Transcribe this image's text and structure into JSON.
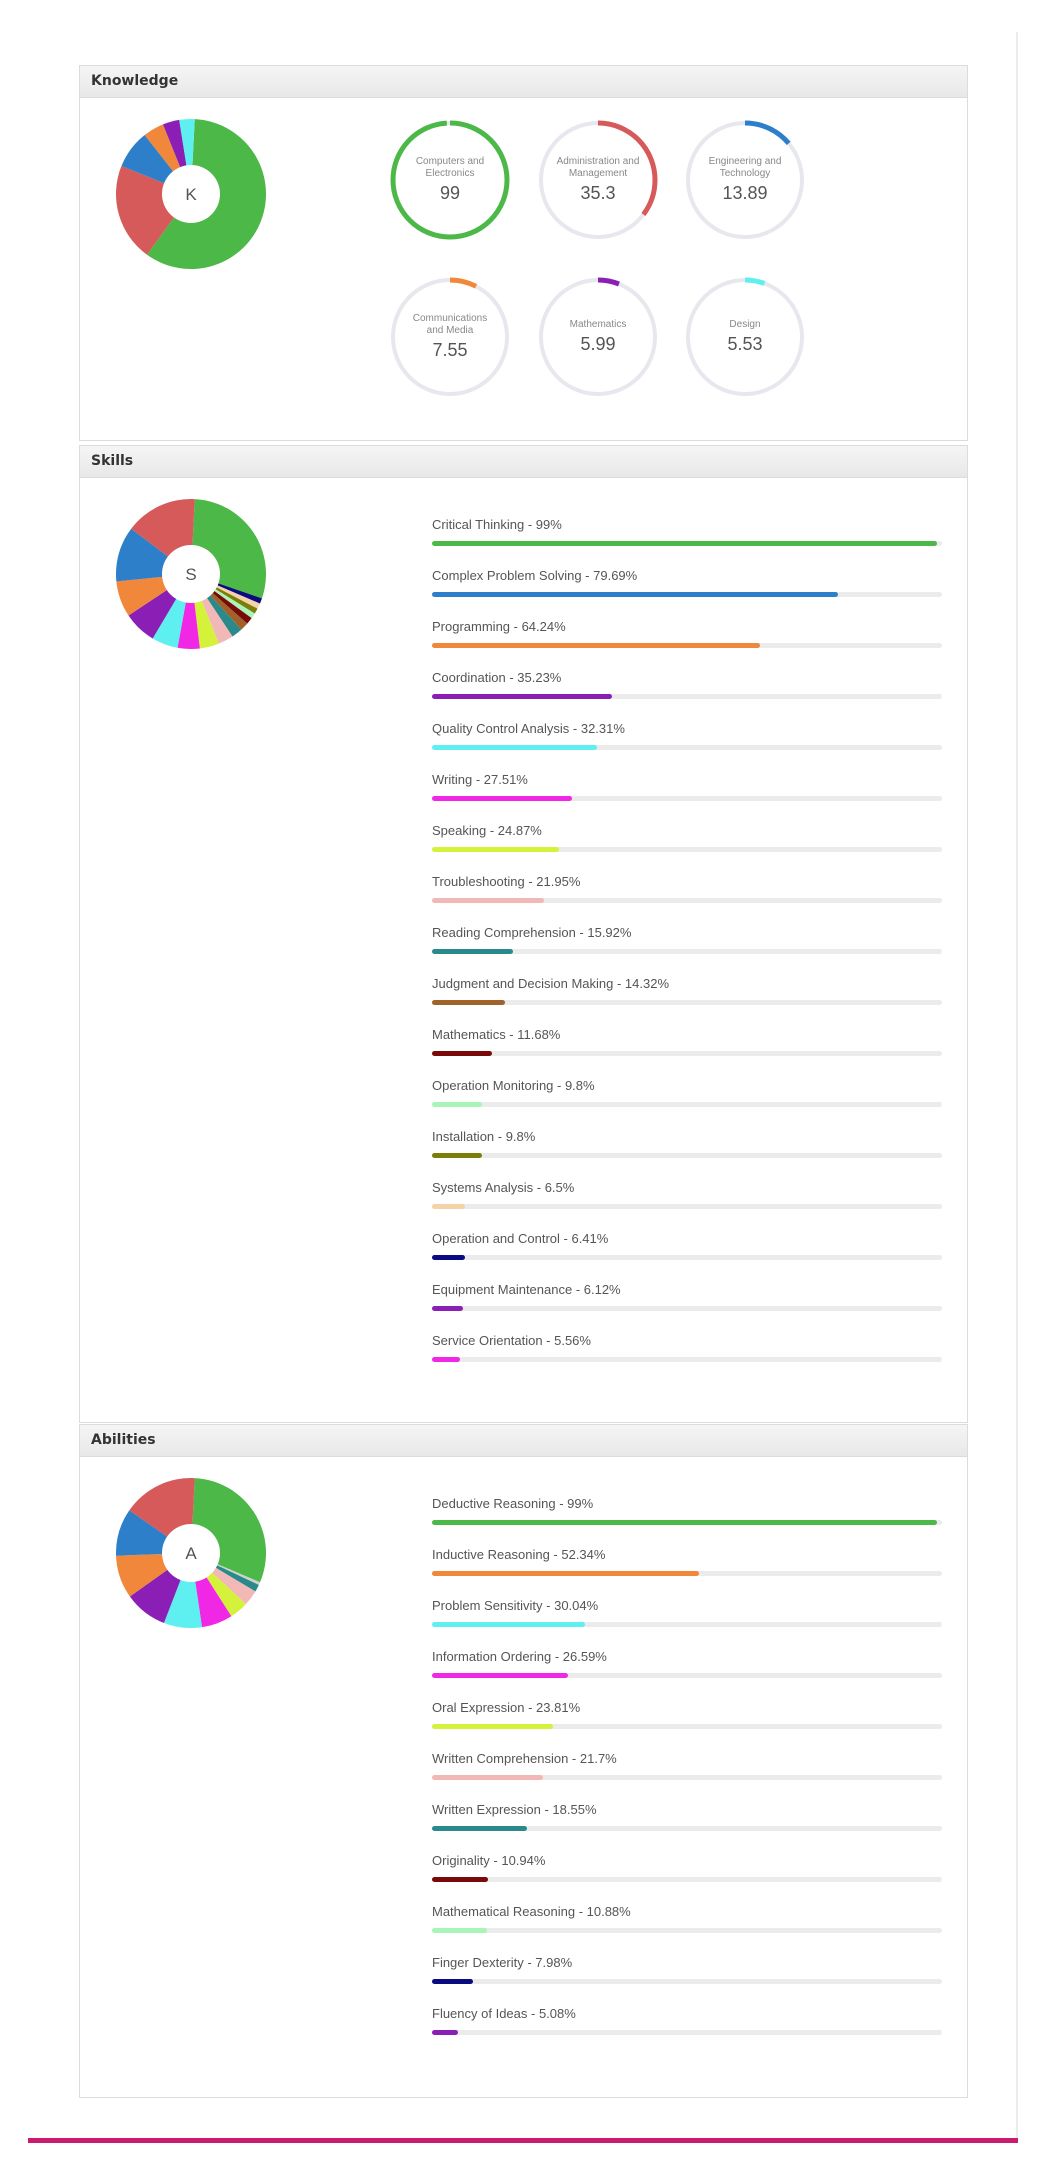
{
  "knowledge": {
    "title": "Knowledge",
    "pie_letter": "K",
    "pie_slices": [
      {
        "value": 99,
        "color": "#4cb848"
      },
      {
        "value": 35.3,
        "color": "#d65a5a"
      },
      {
        "value": 13.89,
        "color": "#2e7fc9"
      },
      {
        "value": 7.55,
        "color": "#f0873a"
      },
      {
        "value": 5.99,
        "color": "#8b1fb5"
      },
      {
        "value": 5.53,
        "color": "#5ef0f0"
      }
    ],
    "items": [
      {
        "label": "Computers and Electronics",
        "value": "99",
        "percent": 99,
        "color": "#4cb848"
      },
      {
        "label": "Administration and Management",
        "value": "35.3",
        "percent": 35.3,
        "color": "#d65a5a"
      },
      {
        "label": "Engineering and Technology",
        "value": "13.89",
        "percent": 13.89,
        "color": "#2e7fc9"
      },
      {
        "label": "Communications and Media",
        "value": "7.55",
        "percent": 7.55,
        "color": "#f0873a"
      },
      {
        "label": "Mathematics",
        "value": "5.99",
        "percent": 5.99,
        "color": "#8b1fb5"
      },
      {
        "label": "Design",
        "value": "5.53",
        "percent": 5.53,
        "color": "#5ef0f0"
      }
    ]
  },
  "skills": {
    "title": "Skills",
    "pie_letter": "S",
    "items": [
      {
        "label": "Critical Thinking - 99%",
        "percent": 99,
        "color": "#4cb848"
      },
      {
        "label": "Complex Problem Solving - 79.69%",
        "percent": 79.69,
        "color": "#2e7fc9"
      },
      {
        "label": "Programming - 64.24%",
        "percent": 64.24,
        "color": "#f0873a"
      },
      {
        "label": "Coordination - 35.23%",
        "percent": 35.23,
        "color": "#8b1fb5"
      },
      {
        "label": "Quality Control Analysis - 32.31%",
        "percent": 32.31,
        "color": "#5ef0f0"
      },
      {
        "label": "Writing - 27.51%",
        "percent": 27.51,
        "color": "#f028e6"
      },
      {
        "label": "Speaking - 24.87%",
        "percent": 24.87,
        "color": "#d4f23a"
      },
      {
        "label": "Troubleshooting - 21.95%",
        "percent": 21.95,
        "color": "#f2b8b8"
      },
      {
        "label": "Reading Comprehension - 15.92%",
        "percent": 15.92,
        "color": "#2a8a8a"
      },
      {
        "label": "Judgment and Decision Making - 14.32%",
        "percent": 14.32,
        "color": "#a0622a"
      },
      {
        "label": "Mathematics - 11.68%",
        "percent": 11.68,
        "color": "#7a0a0a"
      },
      {
        "label": "Operation Monitoring - 9.8%",
        "percent": 9.8,
        "color": "#a8f5b8"
      },
      {
        "label": "Installation - 9.8%",
        "percent": 9.8,
        "color": "#7d7d0a"
      },
      {
        "label": "Systems Analysis - 6.5%",
        "percent": 6.5,
        "color": "#f5d2a8"
      },
      {
        "label": "Operation and Control - 6.41%",
        "percent": 6.41,
        "color": "#0a0a82"
      },
      {
        "label": "Equipment Maintenance - 6.12%",
        "percent": 6.12,
        "color": "#8b1fb5"
      },
      {
        "label": "Service Orientation - 5.56%",
        "percent": 5.56,
        "color": "#f028e6"
      }
    ]
  },
  "abilities": {
    "title": "Abilities",
    "pie_letter": "A",
    "items": [
      {
        "label": "Deductive Reasoning - 99%",
        "percent": 99,
        "color": "#4cb848"
      },
      {
        "label": "Inductive Reasoning - 52.34%",
        "percent": 52.34,
        "color": "#f0873a"
      },
      {
        "label": "Problem Sensitivity - 30.04%",
        "percent": 30.04,
        "color": "#5ef0f0"
      },
      {
        "label": "Information Ordering - 26.59%",
        "percent": 26.59,
        "color": "#f028e6"
      },
      {
        "label": "Oral Expression - 23.81%",
        "percent": 23.81,
        "color": "#d4f23a"
      },
      {
        "label": "Written Comprehension - 21.7%",
        "percent": 21.7,
        "color": "#f2b8b8"
      },
      {
        "label": "Written Expression - 18.55%",
        "percent": 18.55,
        "color": "#2a8a8a"
      },
      {
        "label": "Originality - 10.94%",
        "percent": 10.94,
        "color": "#7a0a0a"
      },
      {
        "label": "Mathematical Reasoning - 10.88%",
        "percent": 10.88,
        "color": "#a8f5b8"
      },
      {
        "label": "Finger Dexterity - 7.98%",
        "percent": 7.98,
        "color": "#0a0a82"
      },
      {
        "label": "Fluency of Ideas - 5.08%",
        "percent": 5.08,
        "color": "#8b1fb5"
      }
    ],
    "pie_slices": [
      {
        "value": 99,
        "color": "#4cb848"
      },
      {
        "value": 2.0,
        "color": "#d0d0d0"
      },
      {
        "value": 5.08,
        "color": "#2a8a8a"
      },
      {
        "value": 10.88,
        "color": "#f2b8b8"
      },
      {
        "value": 13,
        "color": "#d4f23a"
      },
      {
        "value": 21.7,
        "color": "#f028e6"
      },
      {
        "value": 26.59,
        "color": "#5ef0f0"
      },
      {
        "value": 30.04,
        "color": "#8b1fb5"
      },
      {
        "value": 30,
        "color": "#f0873a"
      },
      {
        "value": 33,
        "color": "#2e7fc9"
      },
      {
        "value": 52.34,
        "color": "#d65a5a"
      }
    ]
  },
  "skills_pie_slices": [
    {
      "value": 99,
      "color": "#4cb848"
    },
    {
      "value": 4,
      "color": "#0a0a82"
    },
    {
      "value": 4,
      "color": "#f5d2a8"
    },
    {
      "value": 4,
      "color": "#7d7d0a"
    },
    {
      "value": 4,
      "color": "#a8f5b8"
    },
    {
      "value": 5,
      "color": "#7a0a0a"
    },
    {
      "value": 6,
      "color": "#a0622a"
    },
    {
      "value": 8,
      "color": "#2a8a8a"
    },
    {
      "value": 11,
      "color": "#f2b8b8"
    },
    {
      "value": 14,
      "color": "#d4f23a"
    },
    {
      "value": 16,
      "color": "#f028e6"
    },
    {
      "value": 19,
      "color": "#5ef0f0"
    },
    {
      "value": 24,
      "color": "#8b1fb5"
    },
    {
      "value": 26,
      "color": "#f0873a"
    },
    {
      "value": 40,
      "color": "#2e7fc9"
    },
    {
      "value": 52,
      "color": "#d65a5a"
    }
  ]
}
